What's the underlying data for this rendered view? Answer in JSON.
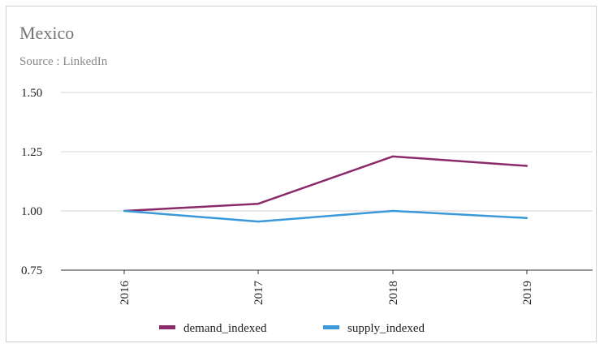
{
  "chart_data": {
    "type": "line",
    "title": "Mexico",
    "subtitle": "Source : LinkedIn",
    "x": [
      "2016",
      "2017",
      "2018",
      "2019"
    ],
    "ylim": [
      0.75,
      1.5
    ],
    "yticks": [
      "0.75",
      "1.00",
      "1.25",
      "1.50"
    ],
    "grid": true,
    "legend_position": "bottom",
    "series": [
      {
        "name": "demand_indexed",
        "color": "#8b2a6b",
        "values": [
          1.0,
          1.03,
          1.23,
          1.19
        ]
      },
      {
        "name": "supply_indexed",
        "color": "#3a9ad9",
        "values": [
          1.0,
          0.955,
          1.0,
          0.97
        ]
      }
    ]
  }
}
